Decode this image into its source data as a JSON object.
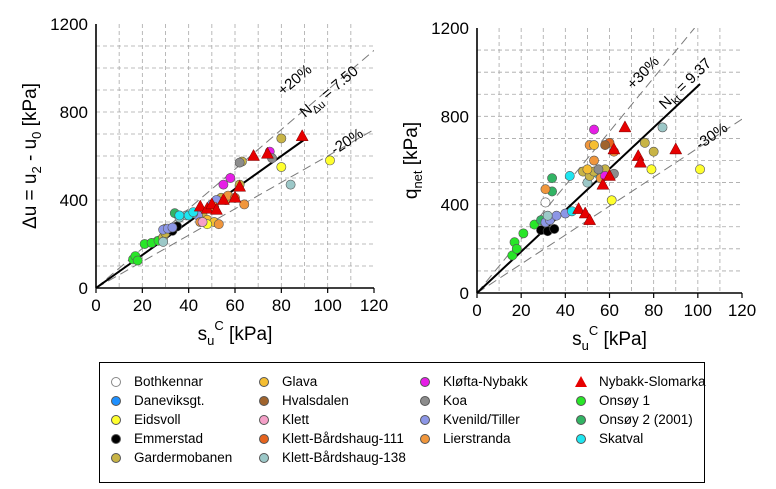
{
  "chart_data": [
    {
      "type": "scatter",
      "title": "",
      "xlabel": "s_u^C [kPa]",
      "xlabel_main": "s",
      "xlabel_sub": "u",
      "xlabel_sup": "C",
      "xlabel_unit": "[kPa]",
      "ylabel": "Δu = u_2 - u_0 [kPa]",
      "ylabel_parts": [
        "Δu = u",
        "2",
        " - u",
        "0",
        " [kPa]"
      ],
      "xlim": [
        0,
        120
      ],
      "ylim": [
        0,
        1200
      ],
      "xticks": [
        0,
        20,
        40,
        60,
        80,
        100,
        120
      ],
      "yticks": [
        0,
        400,
        800,
        1200
      ],
      "fit_slope": 7.5,
      "upper_slope": 9.0,
      "lower_slope": 6.0,
      "fit_label": "N",
      "fit_label_sub": "Δu",
      "fit_label_value": " = 7.50",
      "upper_label": "+20%",
      "lower_label": "-20%",
      "series": [
        {
          "name": "Onsøy 1",
          "points": [
            [
              16,
              130
            ],
            [
              17,
              145
            ],
            [
              18,
              125
            ],
            [
              21,
              200
            ],
            [
              24,
              205
            ],
            [
              27,
              215
            ]
          ]
        },
        {
          "name": "Onsøy 2 (2001)",
          "points": [
            [
              34,
              340
            ]
          ]
        },
        {
          "name": "Gardermobanen",
          "points": [
            [
              29,
              230
            ],
            [
              30,
              250
            ],
            [
              30,
              270
            ],
            [
              46,
              330
            ],
            [
              54,
              410
            ],
            [
              56,
              400
            ],
            [
              62,
              470
            ],
            [
              63,
              575
            ],
            [
              80,
              680
            ]
          ]
        },
        {
          "name": "Emmerstad",
          "points": [
            [
              33,
              260
            ],
            [
              35,
              280
            ]
          ]
        },
        {
          "name": "Kvenild/Tiller",
          "points": [
            [
              29,
              265
            ],
            [
              31,
              270
            ],
            [
              33,
              275
            ],
            [
              44,
              330
            ],
            [
              50,
              380
            ],
            [
              52,
              400
            ]
          ]
        },
        {
          "name": "Klett-Bårdshaug-138",
          "points": [
            [
              29,
              210
            ],
            [
              36,
              320
            ],
            [
              39,
              330
            ],
            [
              42,
              340
            ],
            [
              84,
              470
            ]
          ]
        },
        {
          "name": "Skatval",
          "points": [
            [
              36,
              330
            ],
            [
              40,
              330
            ],
            [
              42,
              345
            ]
          ]
        },
        {
          "name": "Glava",
          "points": [
            [
              48,
              310
            ],
            [
              51,
              300
            ]
          ]
        },
        {
          "name": "Eidsvoll",
          "points": [
            [
              48,
              290
            ],
            [
              80,
              550
            ],
            [
              101,
              580
            ]
          ]
        },
        {
          "name": "Lierstranda",
          "points": [
            [
              45,
              300
            ],
            [
              51,
              370
            ],
            [
              53,
              290
            ],
            [
              57,
              420
            ],
            [
              64,
              380
            ]
          ]
        },
        {
          "name": "Klett",
          "points": [
            [
              46,
              300
            ]
          ]
        },
        {
          "name": "Kløfta-Nybakk",
          "points": [
            [
              55,
              470
            ],
            [
              58,
              500
            ],
            [
              75,
              620
            ]
          ]
        },
        {
          "name": "Koa",
          "points": [
            [
              62,
              570
            ],
            [
              76,
              590
            ]
          ]
        },
        {
          "name": "Klett-Bårdshaug-111",
          "points": [
            [
              60,
              410
            ]
          ]
        },
        {
          "name": "Nybakk-Slomarka",
          "marker": "triangle",
          "points": [
            [
              45,
              370
            ],
            [
              48,
              360
            ],
            [
              50,
              380
            ],
            [
              52,
              355
            ],
            [
              55,
              400
            ],
            [
              60,
              410
            ],
            [
              62,
              460
            ],
            [
              68,
              600
            ],
            [
              74,
              610
            ],
            [
              89,
              690
            ]
          ]
        }
      ]
    },
    {
      "type": "scatter",
      "title": "",
      "xlabel": "s_u^C [kPa]",
      "xlabel_main": "s",
      "xlabel_sub": "u",
      "xlabel_sup": "C",
      "xlabel_unit": "[kPa]",
      "ylabel": "q_net [kPa]",
      "ylabel_parts": [
        "q",
        "net",
        " [kPa]"
      ],
      "xlim": [
        0,
        120
      ],
      "ylim": [
        0,
        1200
      ],
      "xticks": [
        0,
        20,
        40,
        60,
        80,
        100,
        120
      ],
      "yticks": [
        0,
        400,
        800,
        1200
      ],
      "fit_slope": 9.37,
      "upper_slope": 12.18,
      "lower_slope": 6.56,
      "fit_label": "N",
      "fit_label_sub": "kt",
      "fit_label_value": " = 9.37",
      "upper_label": "+30%",
      "lower_label": "-30%",
      "series": [
        {
          "name": "Onsøy 1",
          "points": [
            [
              16,
              170
            ],
            [
              17,
              230
            ],
            [
              18,
              200
            ],
            [
              21,
              270
            ],
            [
              26,
              310
            ]
          ]
        },
        {
          "name": "Onsøy 2 (2001)",
          "points": [
            [
              29,
              330
            ],
            [
              34,
              520
            ],
            [
              34,
              460
            ]
          ]
        },
        {
          "name": "Bothkennar",
          "points": [
            [
              31,
              410
            ]
          ]
        },
        {
          "name": "Emmerstad",
          "points": [
            [
              29,
              285
            ],
            [
              32,
              280
            ],
            [
              35,
              290
            ]
          ]
        },
        {
          "name": "Kvenild/Tiller",
          "points": [
            [
              31,
              320
            ],
            [
              33,
              330
            ],
            [
              36,
              350
            ],
            [
              40,
              360
            ]
          ]
        },
        {
          "name": "Skatval",
          "points": [
            [
              42,
              530
            ],
            [
              43,
              370
            ],
            [
              55,
              540
            ],
            [
              57,
              550
            ]
          ]
        },
        {
          "name": "Klett-Bårdshaug-138",
          "points": [
            [
              32,
              350
            ],
            [
              50,
              500
            ],
            [
              84,
              750
            ]
          ]
        },
        {
          "name": "Gardermobanen",
          "points": [
            [
              48,
              550
            ],
            [
              51,
              530
            ],
            [
              53,
              550
            ],
            [
              58,
              560
            ],
            [
              76,
              680
            ],
            [
              80,
              640
            ]
          ]
        },
        {
          "name": "Lierstranda",
          "points": [
            [
              31,
              470
            ],
            [
              51,
              670
            ],
            [
              53,
              600
            ],
            [
              56,
              520
            ],
            [
              62,
              640
            ]
          ]
        },
        {
          "name": "Eidsvoll",
          "points": [
            [
              61,
              420
            ],
            [
              79,
              560
            ],
            [
              101,
              560
            ]
          ]
        },
        {
          "name": "Glava",
          "points": [
            [
              50,
              560
            ],
            [
              53,
              670
            ]
          ]
        },
        {
          "name": "Kløfta-Nybakk",
          "points": [
            [
              53,
              740
            ],
            [
              58,
              530
            ]
          ]
        },
        {
          "name": "Koa",
          "points": [
            [
              55,
              560
            ],
            [
              62,
              540
            ]
          ]
        },
        {
          "name": "Klett-Bårdshaug-111",
          "points": [
            [
              60,
              680
            ]
          ]
        },
        {
          "name": "Hvalsdalen",
          "points": [
            [
              58,
              670
            ]
          ]
        },
        {
          "name": "Nybakk-Slomarka",
          "marker": "triangle",
          "points": [
            [
              46,
              380
            ],
            [
              49,
              360
            ],
            [
              51,
              330
            ],
            [
              57,
              490
            ],
            [
              60,
              530
            ],
            [
              62,
              650
            ],
            [
              67,
              750
            ],
            [
              73,
              620
            ],
            [
              74,
              590
            ],
            [
              90,
              650
            ]
          ]
        }
      ]
    }
  ],
  "legend": {
    "columns": [
      [
        {
          "name": "Bothkennar",
          "color": "#ffffff",
          "marker": "circle"
        },
        {
          "name": "Daneviksgt.",
          "color": "#1e90ff",
          "marker": "circle"
        },
        {
          "name": "Eidsvoll",
          "color": "#ffff2e",
          "marker": "circle"
        },
        {
          "name": "Emmerstad",
          "color": "#000000",
          "marker": "circle"
        },
        {
          "name": "Gardermobanen",
          "color": "#c8b446",
          "marker": "circle"
        }
      ],
      [
        {
          "name": "Glava",
          "color": "#f5be32",
          "marker": "circle"
        },
        {
          "name": "Hvalsdalen",
          "color": "#a0642d",
          "marker": "circle"
        },
        {
          "name": "Klett",
          "color": "#f5a0c8",
          "marker": "circle"
        },
        {
          "name": "Klett-Bårdshaug-111",
          "color": "#e6641e",
          "marker": "circle"
        },
        {
          "name": "Klett-Bårdshaug-138",
          "color": "#9cc8c8",
          "marker": "circle"
        }
      ],
      [
        {
          "name": "Kløfta-Nybakk",
          "color": "#e61ee6",
          "marker": "circle"
        },
        {
          "name": "Koa",
          "color": "#8c8c8c",
          "marker": "circle"
        },
        {
          "name": "Kvenild/Tiller",
          "color": "#8c96e6",
          "marker": "circle"
        },
        {
          "name": "Lierstranda",
          "color": "#f0963c",
          "marker": "circle"
        }
      ],
      [
        {
          "name": "Nybakk-Slomarka",
          "color": "#e60000",
          "marker": "triangle"
        },
        {
          "name": "Onsøy 1",
          "color": "#28e628",
          "marker": "circle"
        },
        {
          "name": "Onsøy 2 (2001)",
          "color": "#32b464",
          "marker": "circle"
        },
        {
          "name": "Skatval",
          "color": "#1ee6f0",
          "marker": "circle"
        }
      ]
    ]
  }
}
